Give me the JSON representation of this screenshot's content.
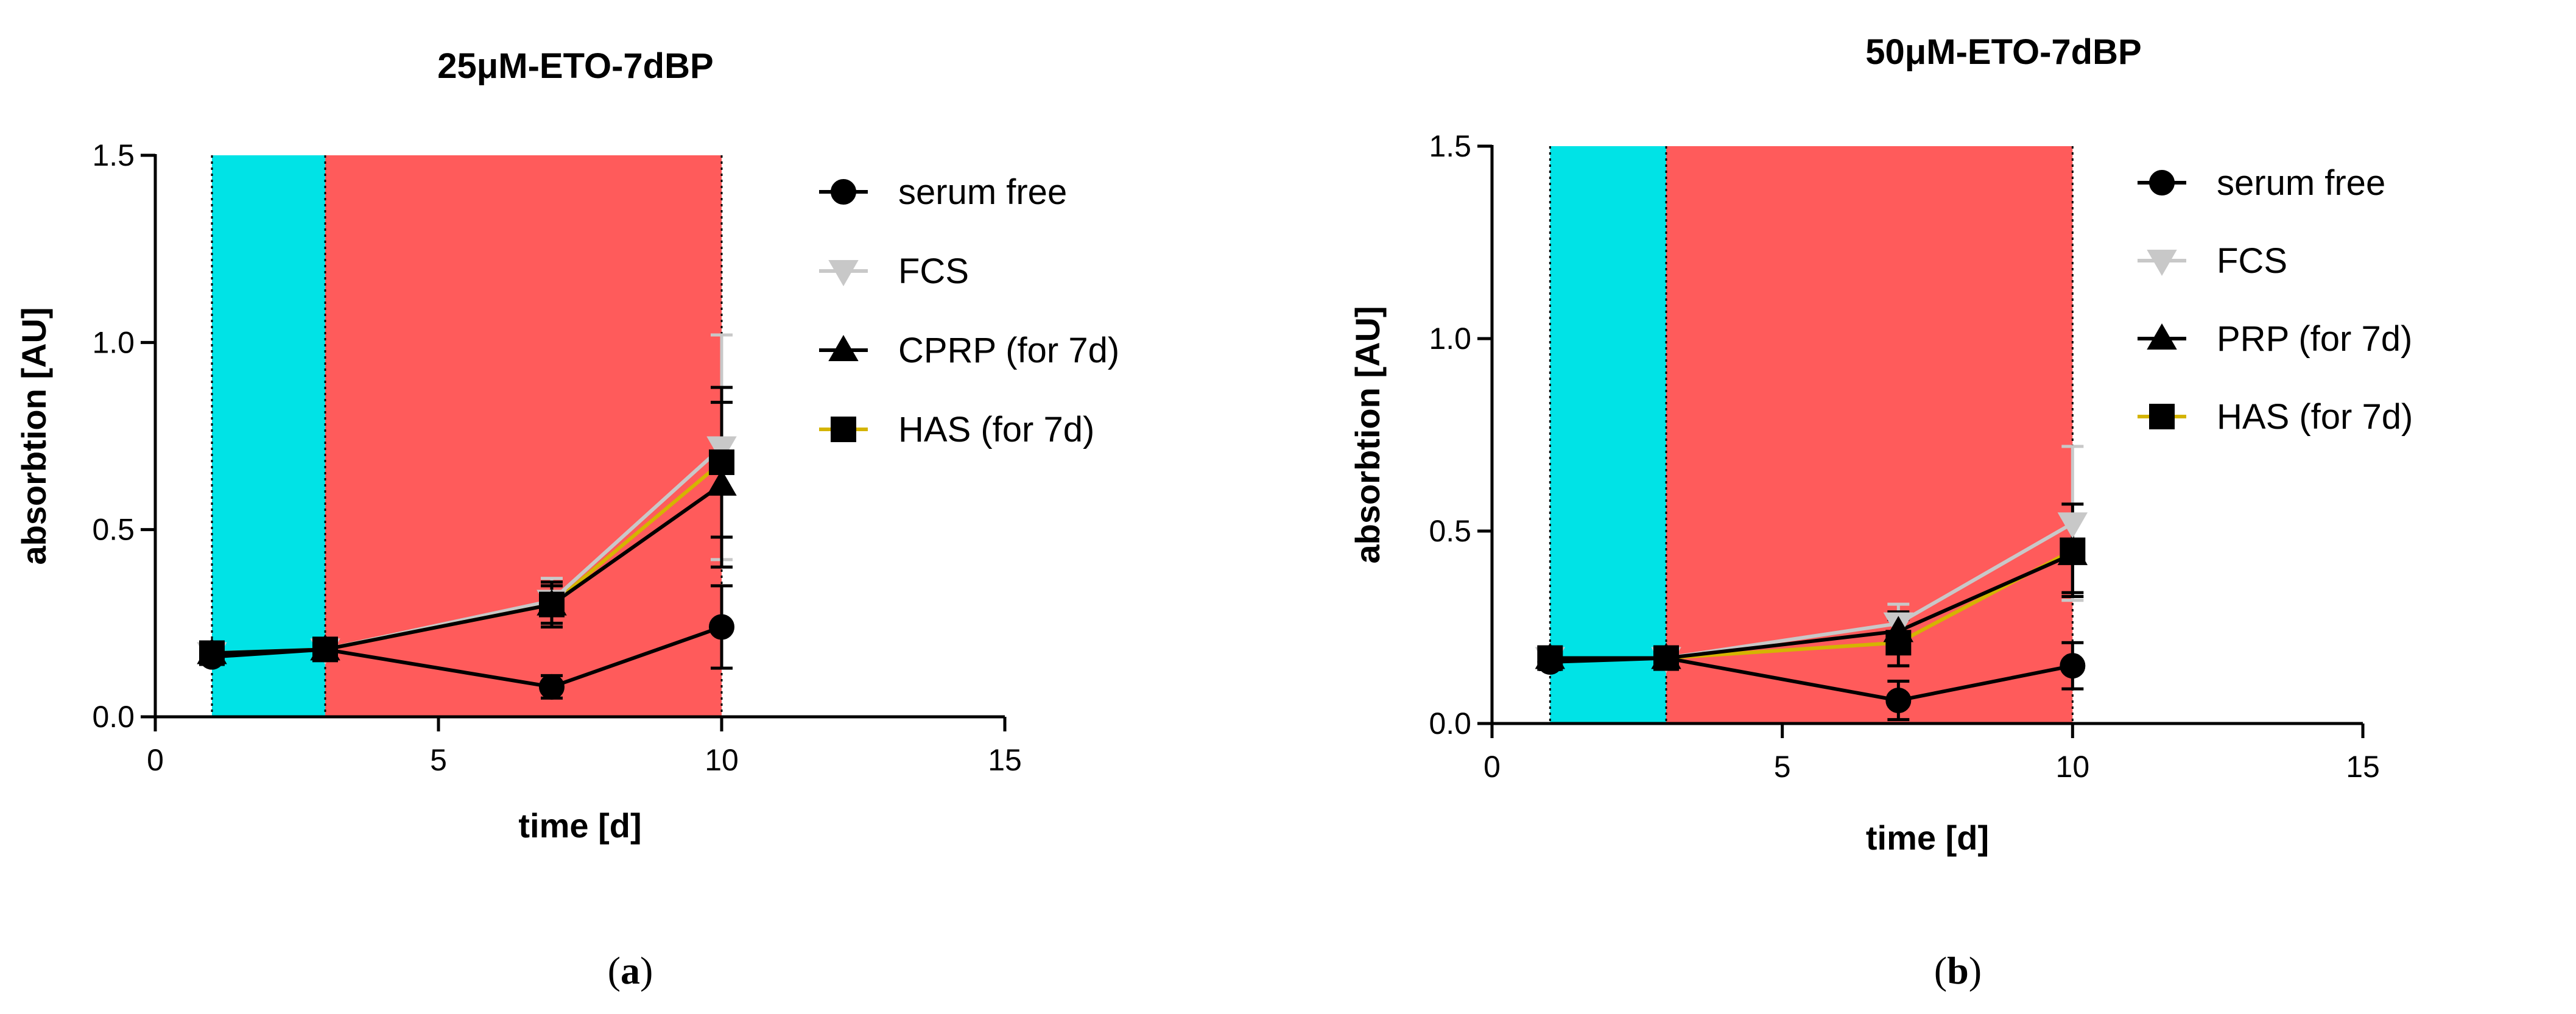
{
  "chart_data": [
    {
      "type": "line",
      "title": "25μM-ETO-7dBP",
      "xlabel": "time [d]",
      "ylabel": "absorbtion [AU]",
      "xlim": [
        0,
        15
      ],
      "ylim": [
        0,
        1.5
      ],
      "xticks": [
        "0",
        "5",
        "10",
        "15"
      ],
      "yticks": [
        "0.0",
        "0.5",
        "1.0",
        "1.5"
      ],
      "grid": false,
      "legend_position": "right",
      "shaded_regions": [
        {
          "x0": 1,
          "x1": 3,
          "color": "#00E3E6"
        },
        {
          "x0": 3,
          "x1": 10,
          "color": "#FF5B5B"
        }
      ],
      "series": [
        {
          "name": "serum free",
          "marker": "circle",
          "color": "#000000",
          "marker_color": "#000000",
          "x": [
            1,
            3,
            7,
            10
          ],
          "y": [
            0.16,
            0.18,
            0.08,
            0.24
          ],
          "err": [
            0.02,
            0.02,
            0.03,
            0.11
          ]
        },
        {
          "name": "FCS",
          "marker": "triangle-down",
          "color": "#C8C8C8",
          "marker_color": "#C8C8C8",
          "x": [
            1,
            3,
            7,
            10
          ],
          "y": [
            0.17,
            0.18,
            0.31,
            0.72
          ],
          "err": [
            0.02,
            0.02,
            0.06,
            0.3
          ]
        },
        {
          "name": "CPRP (for 7d)",
          "marker": "triangle-up",
          "color": "#000000",
          "marker_color": "#000000",
          "x": [
            1,
            3,
            7,
            10
          ],
          "y": [
            0.17,
            0.18,
            0.3,
            0.62
          ],
          "err": [
            0.02,
            0.02,
            0.05,
            0.22
          ]
        },
        {
          "name": "HAS  (for 7d)",
          "marker": "square",
          "color": "#D4B400",
          "marker_color": "#000000",
          "x": [
            1,
            3,
            7,
            10
          ],
          "y": [
            0.17,
            0.18,
            0.3,
            0.68
          ],
          "err": [
            0.02,
            0.02,
            0.06,
            0.2
          ]
        }
      ],
      "caption": "a"
    },
    {
      "type": "line",
      "title": "50μM-ETO-7dBP",
      "xlabel": "time [d]",
      "ylabel": "absorbtion [AU]",
      "xlim": [
        0,
        15
      ],
      "ylim": [
        0,
        1.5
      ],
      "xticks": [
        "0",
        "5",
        "10",
        "15"
      ],
      "yticks": [
        "0.0",
        "0.5",
        "1.0",
        "1.5"
      ],
      "grid": false,
      "legend_position": "right",
      "shaded_regions": [
        {
          "x0": 1,
          "x1": 3,
          "color": "#00E3E6"
        },
        {
          "x0": 3,
          "x1": 10,
          "color": "#FF5B5B"
        }
      ],
      "series": [
        {
          "name": "serum free",
          "marker": "circle",
          "color": "#000000",
          "marker_color": "#000000",
          "x": [
            1,
            3,
            7,
            10
          ],
          "y": [
            0.16,
            0.17,
            0.06,
            0.15
          ],
          "err": [
            0.02,
            0.02,
            0.05,
            0.06
          ]
        },
        {
          "name": "FCS",
          "marker": "triangle-down",
          "color": "#C8C8C8",
          "marker_color": "#C8C8C8",
          "x": [
            1,
            3,
            7,
            10
          ],
          "y": [
            0.17,
            0.17,
            0.26,
            0.52
          ],
          "err": [
            0.02,
            0.02,
            0.05,
            0.2
          ]
        },
        {
          "name": "PRP (for 7d)",
          "marker": "triangle-up",
          "color": "#000000",
          "marker_color": "#000000",
          "x": [
            1,
            3,
            7,
            10
          ],
          "y": [
            0.17,
            0.17,
            0.24,
            0.44
          ],
          "err": [
            0.02,
            0.02,
            0.05,
            0.1
          ]
        },
        {
          "name": "HAS  (for 7d)",
          "marker": "square",
          "color": "#D4B400",
          "marker_color": "#000000",
          "x": [
            1,
            3,
            7,
            10
          ],
          "y": [
            0.17,
            0.17,
            0.21,
            0.45
          ],
          "err": [
            0.02,
            0.02,
            0.06,
            0.12
          ]
        }
      ],
      "caption": "b"
    }
  ]
}
